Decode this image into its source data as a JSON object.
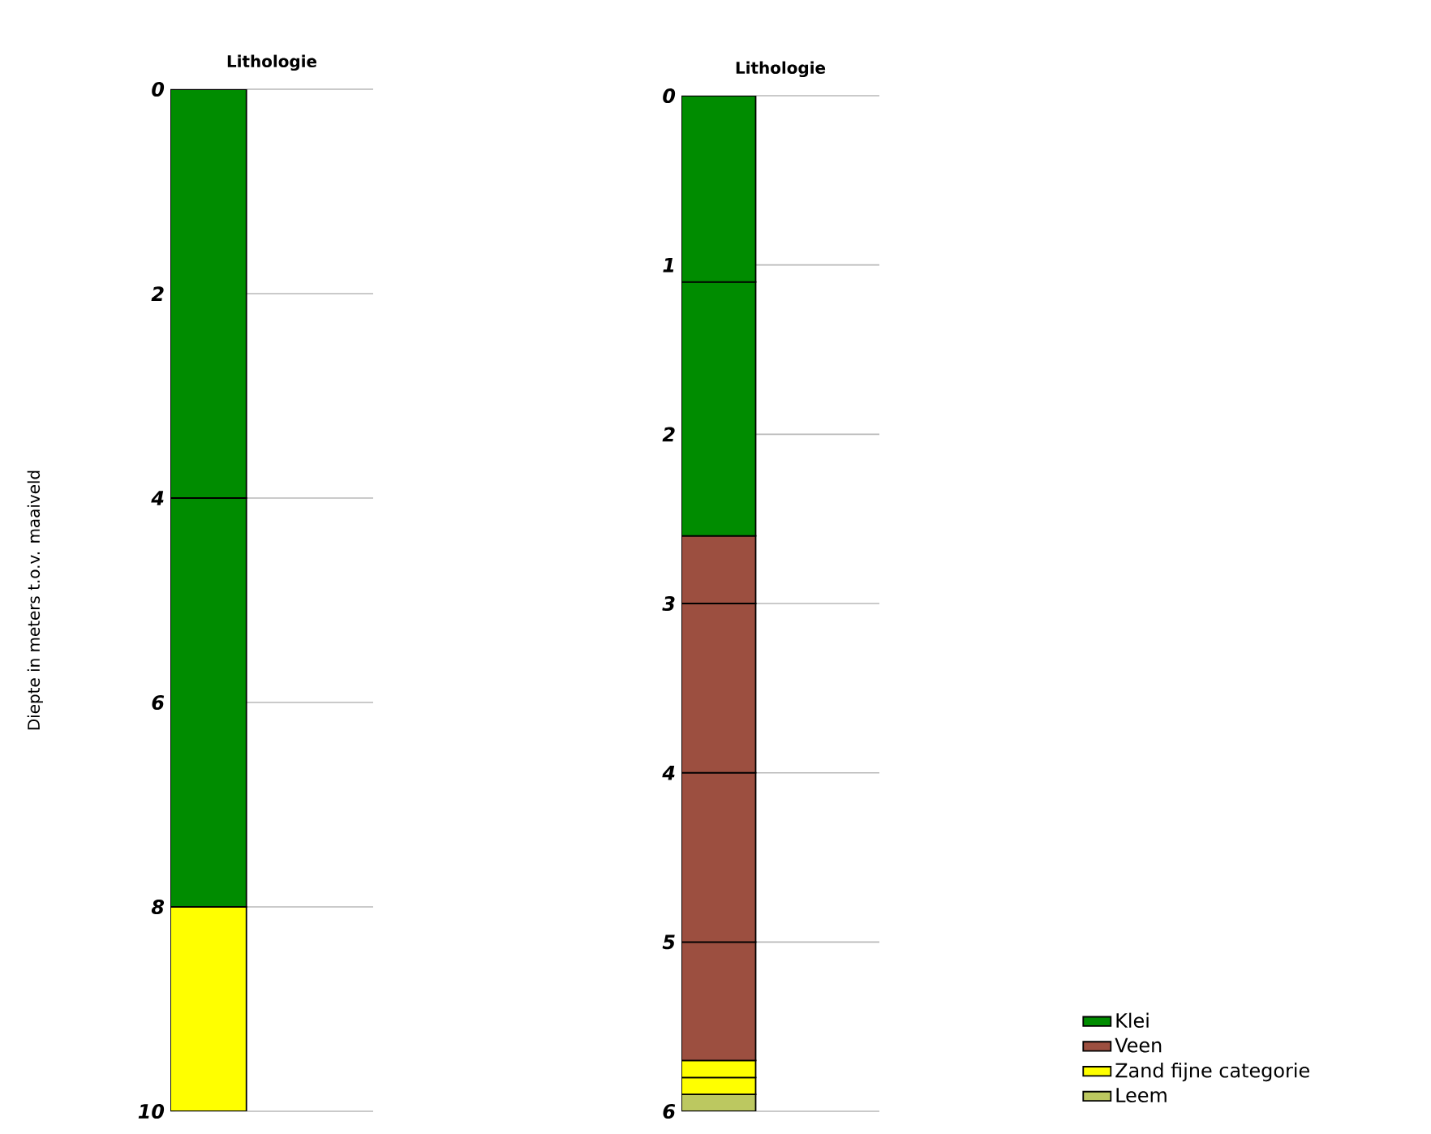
{
  "chart_data": [
    {
      "type": "bar",
      "stacked": true,
      "title": "Lithologie",
      "ylabel": "Diepte in meters t.o.v. maaiveld",
      "categories": [
        null
      ],
      "ylim": [
        10,
        0
      ],
      "yticks": [
        0,
        2,
        4,
        6,
        8,
        10
      ],
      "grid": "y",
      "series": [
        {
          "color": "#008c00",
          "values": [
            4
          ]
        },
        {
          "color": "#008c00",
          "values": [
            4
          ]
        },
        {
          "color": "#ffff00",
          "values": [
            2
          ]
        }
      ]
    },
    {
      "type": "bar",
      "stacked": true,
      "title": "Lithologie",
      "categories": [
        null
      ],
      "ylim": [
        6,
        0
      ],
      "yticks": [
        0,
        1,
        2,
        3,
        4,
        5,
        6
      ],
      "grid": "y",
      "legend": "bottom right",
      "series": [
        {
          "name": "Klei",
          "color": "#008c00",
          "values": [
            1.1
          ]
        },
        {
          "color": "#008c00",
          "values": [
            1.5
          ]
        },
        {
          "name": "Veen",
          "color": "#9c4f40",
          "values": [
            0.4
          ]
        },
        {
          "color": "#9c4f40",
          "values": [
            1
          ]
        },
        {
          "color": "#9c4f40",
          "values": [
            1
          ]
        },
        {
          "color": "#9c4f40",
          "values": [
            0.7
          ]
        },
        {
          "name": "Zand fijne categorie",
          "color": "#ffff00",
          "values": [
            0.1
          ]
        },
        {
          "color": "#ffff00",
          "values": [
            0.1
          ]
        },
        {
          "name": "Leem",
          "color": "#bcc860",
          "values": [
            0.1
          ]
        }
      ]
    }
  ]
}
